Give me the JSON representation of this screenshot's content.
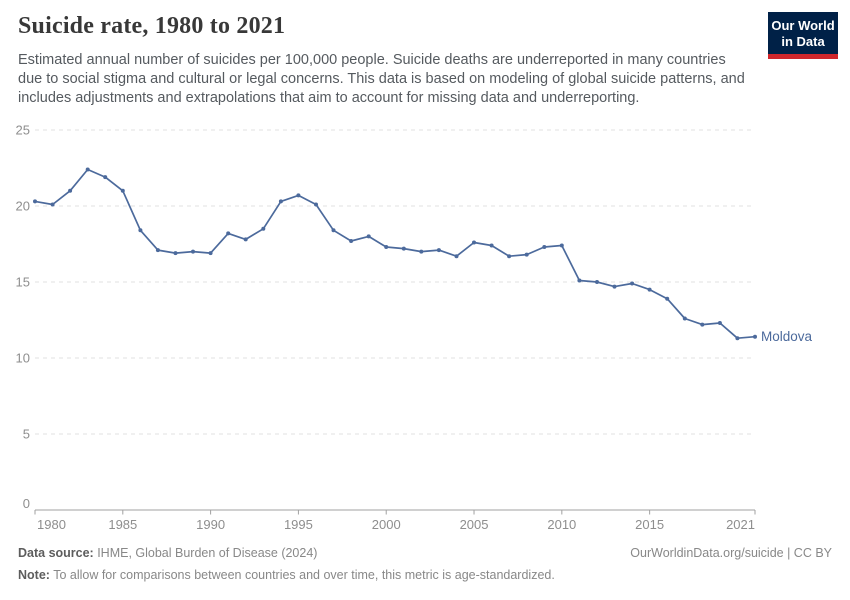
{
  "header": {
    "title": "Suicide rate, 1980 to 2021",
    "subtitle": "Estimated annual number of suicides per 100,000 people. Suicide deaths are underreported in many countries due to social stigma and cultural or legal concerns. This data is based on modeling of global suicide patterns, and includes adjustments and extrapolations that aim to account for missing data and underreporting.",
    "logo": {
      "line1": "Our World",
      "line2": "in Data",
      "bg_color": "#002147",
      "stripe_color": "#d0262b"
    }
  },
  "chart_data": {
    "type": "line",
    "title": "Suicide rate, 1980 to 2021",
    "xlabel": "",
    "ylabel": "",
    "xlim": [
      1980,
      2021
    ],
    "ylim": [
      0,
      25
    ],
    "x_ticks": [
      1980,
      1985,
      1990,
      1995,
      2000,
      2005,
      2010,
      2015,
      2021
    ],
    "y_ticks": [
      0,
      5,
      10,
      15,
      20,
      25
    ],
    "grid": "horizontal-dashed",
    "legend_position": "end-of-line-label",
    "x": [
      1980,
      1981,
      1982,
      1983,
      1984,
      1985,
      1986,
      1987,
      1988,
      1989,
      1990,
      1991,
      1992,
      1993,
      1994,
      1995,
      1996,
      1997,
      1998,
      1999,
      2000,
      2001,
      2002,
      2003,
      2004,
      2005,
      2006,
      2007,
      2008,
      2009,
      2010,
      2011,
      2012,
      2013,
      2014,
      2015,
      2016,
      2017,
      2018,
      2019,
      2020,
      2021
    ],
    "series": [
      {
        "name": "Moldova",
        "color": "#4C6A9C",
        "values": [
          20.3,
          20.1,
          21.0,
          22.4,
          21.9,
          21.0,
          18.4,
          17.1,
          16.9,
          17.0,
          16.9,
          18.2,
          17.8,
          18.5,
          20.3,
          20.7,
          20.1,
          18.4,
          17.7,
          18.0,
          17.3,
          17.2,
          17.0,
          17.1,
          16.7,
          17.6,
          17.4,
          16.7,
          16.8,
          17.3,
          17.4,
          15.1,
          15.0,
          14.7,
          14.9,
          14.5,
          13.9,
          12.6,
          12.2,
          12.3,
          11.3,
          11.4
        ]
      }
    ],
    "axis_color": "#a1a1a1",
    "gridline_color": "#e2e2e2",
    "tick_label_color": "#8e8e8e"
  },
  "footer": {
    "datasource_label": "Data source:",
    "datasource_value": " IHME, Global Burden of Disease (2024)",
    "link": "OurWorldinData.org/suicide | CC BY",
    "note_label": "Note:",
    "note_value": " To allow for comparisons between countries and over time, this metric is age-standardized."
  }
}
